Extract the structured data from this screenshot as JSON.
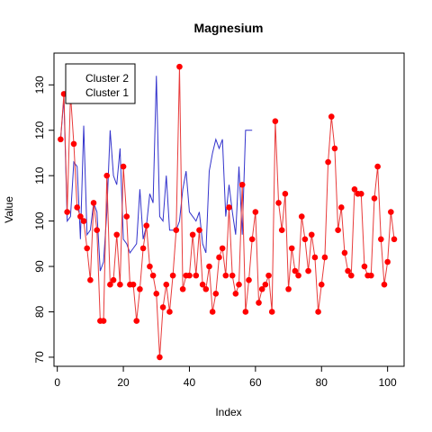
{
  "chart_data": {
    "type": "line",
    "title": "Magnesium",
    "xlabel": "Index",
    "ylabel": "Value",
    "xlim": [
      -1,
      105
    ],
    "ylim": [
      68,
      137
    ],
    "x_ticks": [
      0,
      20,
      40,
      60,
      80,
      100
    ],
    "y_ticks": [
      70,
      80,
      90,
      100,
      110,
      120,
      130
    ],
    "legend": {
      "position": "top-left",
      "entries": [
        "Cluster 2",
        "Cluster 1"
      ]
    },
    "grid": false,
    "series": [
      {
        "name": "Cluster 2",
        "color": "#3333cc",
        "markers": false,
        "x": [
          1,
          2,
          3,
          4,
          5,
          6,
          7,
          8,
          9,
          10,
          11,
          12,
          13,
          14,
          15,
          16,
          17,
          18,
          19,
          20,
          21,
          22,
          23,
          24,
          25,
          26,
          27,
          28,
          29,
          30,
          31,
          32,
          33,
          34,
          35,
          36,
          37,
          38,
          39,
          40,
          41,
          42,
          43,
          44,
          45,
          46,
          47,
          48,
          49,
          50,
          51,
          52,
          53,
          54,
          55,
          56,
          57,
          58,
          59
        ],
        "values": [
          118,
          127,
          100,
          101,
          113,
          112,
          96,
          121,
          97,
          98,
          104,
          102,
          89,
          91,
          102,
          120,
          110,
          108,
          116,
          96,
          95,
          93,
          94,
          95,
          107,
          96,
          99,
          106,
          104,
          132,
          101,
          100,
          110,
          98,
          98,
          98,
          100,
          107,
          111,
          102,
          101,
          100,
          102,
          95,
          93,
          111,
          115,
          118,
          116,
          118,
          101,
          108,
          102,
          97,
          112,
          97,
          120,
          120,
          120
        ]
      },
      {
        "name": "Cluster 1",
        "color": "#e83a3a",
        "markers": true,
        "x": [
          1,
          2,
          3,
          4,
          5,
          6,
          7,
          8,
          9,
          10,
          11,
          12,
          13,
          14,
          15,
          16,
          17,
          18,
          19,
          20,
          21,
          22,
          23,
          24,
          25,
          26,
          27,
          28,
          29,
          30,
          31,
          32,
          33,
          34,
          35,
          36,
          37,
          38,
          39,
          40,
          41,
          42,
          43,
          44,
          45,
          46,
          47,
          48,
          49,
          50,
          51,
          52,
          53,
          54,
          55,
          56,
          57,
          58,
          59,
          60,
          61,
          62,
          63,
          64,
          65,
          66,
          67,
          68,
          69,
          70,
          71,
          72,
          73,
          74,
          75,
          76,
          77,
          78,
          79,
          80,
          81,
          82,
          83,
          84,
          85,
          86,
          87,
          88,
          89,
          90,
          91,
          92,
          93,
          94,
          95,
          96,
          97,
          98,
          99,
          100,
          101,
          102
        ],
        "values": [
          118,
          128,
          102,
          128,
          117,
          103,
          101,
          100,
          94,
          87,
          104,
          98,
          78,
          78,
          110,
          86,
          87,
          97,
          86,
          112,
          101,
          86,
          86,
          78,
          85,
          94,
          99,
          90,
          88,
          84,
          70,
          81,
          86,
          80,
          88,
          98,
          134,
          85,
          88,
          88,
          97,
          88,
          98,
          86,
          85,
          90,
          80,
          84,
          92,
          94,
          88,
          103,
          88,
          84,
          86,
          108,
          80,
          87,
          96,
          102,
          82,
          85,
          86,
          88,
          80,
          122,
          104,
          98,
          106,
          85,
          94,
          89,
          88,
          101,
          96,
          89,
          97,
          92,
          80,
          86,
          92,
          113,
          123,
          116,
          98,
          103,
          93,
          89,
          88,
          107,
          106,
          106,
          90,
          88,
          88,
          105,
          112,
          96,
          86,
          91,
          102,
          96
        ]
      }
    ]
  }
}
